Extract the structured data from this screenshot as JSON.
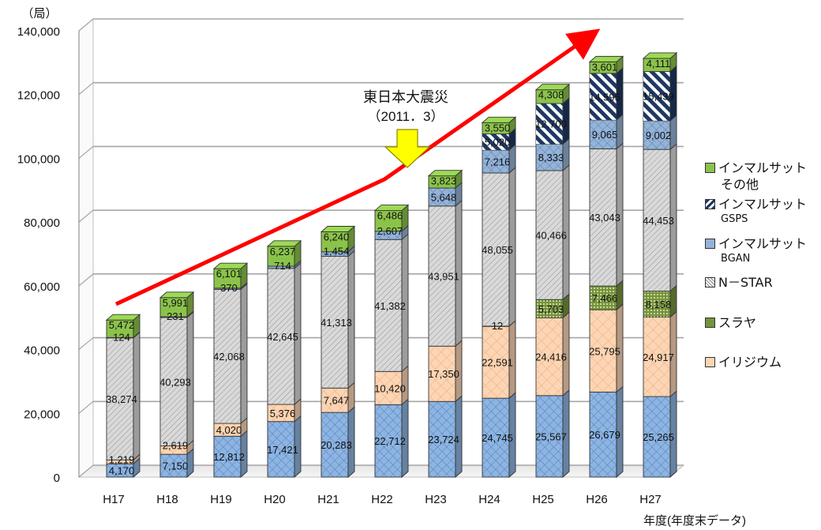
{
  "chart_data": {
    "type": "bar",
    "stacked": true,
    "style": "3d",
    "y_unit": "（局）",
    "xlabel": "年度(年度末データ)",
    "ylim": [
      0,
      140000
    ],
    "yticks": [
      0,
      20000,
      40000,
      60000,
      80000,
      100000,
      120000,
      140000
    ],
    "ytick_labels": [
      "0",
      "20,000",
      "40,000",
      "60,000",
      "80,000",
      "100,000",
      "120,000",
      "140,000"
    ],
    "grid": true,
    "legend_position": "right",
    "categories": [
      "H17",
      "H18",
      "H19",
      "H20",
      "H21",
      "H22",
      "H23",
      "H24",
      "H25",
      "H26",
      "H27"
    ],
    "series": [
      {
        "name": "",
        "color": "#8db4e2",
        "pattern": "grid",
        "values": [
          4170,
          7150,
          12812,
          17421,
          20283,
          22712,
          23724,
          24745,
          25567,
          26679,
          25265
        ]
      },
      {
        "name": "イリジウム",
        "color": "#fcd5b4",
        "pattern": "cross",
        "values": [
          1219,
          2619,
          4020,
          5376,
          7647,
          10420,
          17350,
          22591,
          24416,
          25795,
          24917
        ]
      },
      {
        "name": "スラヤ",
        "color": "#76933c",
        "pattern": "dots",
        "values": [
          0,
          0,
          0,
          0,
          0,
          0,
          0,
          12,
          5703,
          7466,
          8158
        ]
      },
      {
        "name": "N－STAR",
        "color": "#d9d9d9",
        "pattern": "diag",
        "values": [
          38274,
          40293,
          42068,
          42645,
          41313,
          41382,
          43951,
          48055,
          40466,
          43043,
          44453
        ]
      },
      {
        "name": "インマルサット BGAN",
        "color": "#95b3d7",
        "pattern": "grid",
        "values": [
          124,
          231,
          370,
          714,
          1454,
          2607,
          5648,
          7216,
          8333,
          9065,
          9002
        ]
      },
      {
        "name": "インマルサット GSPS",
        "color": "#1f3864",
        "pattern": "diagw",
        "values": [
          0,
          0,
          0,
          0,
          0,
          0,
          0,
          5020,
          12700,
          14595,
          15439
        ]
      },
      {
        "name": "インマルサット その他",
        "color": "#8bc34a",
        "pattern": "solid",
        "values": [
          5472,
          5991,
          6101,
          6237,
          6240,
          6486,
          3823,
          3550,
          4308,
          3601,
          4111
        ]
      }
    ],
    "data_labels": [
      [
        "4,170",
        "1,219",
        "",
        "38,274",
        "124",
        "",
        "5,472"
      ],
      [
        "7,150",
        "2,619",
        "",
        "40,293",
        "231",
        "",
        "5,991"
      ],
      [
        "12,812",
        "4,020",
        "",
        "42,068",
        "370",
        "",
        "6,101"
      ],
      [
        "17,421",
        "5,376",
        "",
        "42,645",
        "714",
        "",
        "6,237"
      ],
      [
        "20,283",
        "7,647",
        "",
        "41,313",
        "1,454",
        "",
        "6,240"
      ],
      [
        "22,712",
        "10,420",
        "",
        "41,382",
        "2,607",
        "",
        "6,486"
      ],
      [
        "23,724",
        "17,350",
        "",
        "43,951",
        "5,648",
        "",
        "3,823"
      ],
      [
        "24,745",
        "22,591",
        "12",
        "48,055",
        "7,216",
        "5,020",
        "3,550"
      ],
      [
        "25,567",
        "24,416",
        "5,703",
        "40,466",
        "8,333",
        "12,700",
        "4,308"
      ],
      [
        "26,679",
        "25,795",
        "7,466",
        "43,043",
        "9,065",
        "14,595",
        "3,601"
      ],
      [
        "25,265",
        "24,917",
        "8,158",
        "44,453",
        "9,002",
        "15,439",
        "4,111"
      ]
    ],
    "annotations": [
      {
        "text": "東日本大震災",
        "sub": "（2011．3）",
        "category": "H22"
      }
    ],
    "legend": [
      {
        "label": "インマルサット",
        "sub": "その他",
        "series": 6
      },
      {
        "label": "インマルサット",
        "sub": "GSPS",
        "series": 5
      },
      {
        "label": "インマルサット",
        "sub": "BGAN",
        "series": 4
      },
      {
        "label": "N－STAR",
        "sub": "",
        "series": 3
      },
      {
        "label": "スラヤ",
        "sub": "",
        "series": 2
      },
      {
        "label": "イリジウム",
        "sub": "",
        "series": 1
      }
    ]
  }
}
